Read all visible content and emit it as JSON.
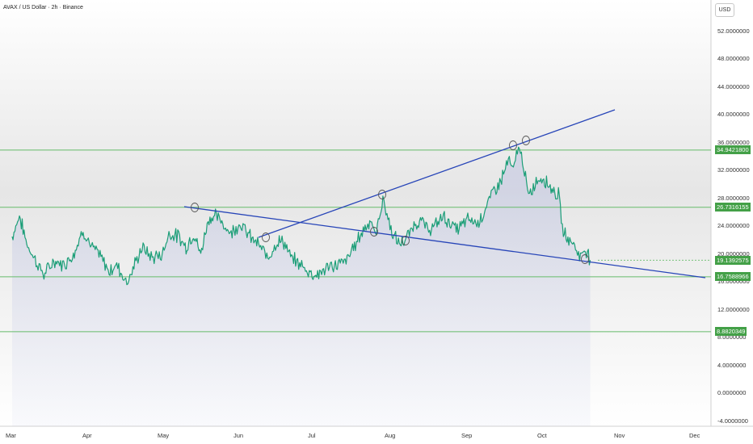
{
  "header": {
    "symbol": "AVAX / US Dollar · 2h · Binance",
    "currency_button": "USD"
  },
  "price_axis": {
    "ticks": [
      "52.0000000",
      "48.0000000",
      "44.0000000",
      "40.0000000",
      "36.0000000",
      "32.0000000",
      "28.0000000",
      "24.0000000",
      "20.0000000",
      "16.0000000",
      "12.0000000",
      "8.0000000",
      "4.0000000",
      "0.0000000",
      "-4.0000000"
    ]
  },
  "time_axis": {
    "ticks": [
      "Mar",
      "Apr",
      "May",
      "Jun",
      "Jul",
      "Aug",
      "Sep",
      "Oct",
      "Nov",
      "Dec"
    ]
  },
  "levels": [
    {
      "value": 34.94218,
      "label": "34.9421800"
    },
    {
      "value": 26.7316155,
      "label": "26.7316155"
    },
    {
      "value": 16.7588966,
      "label": "16.7588966"
    },
    {
      "value": 8.8820349,
      "label": "8.8820349"
    }
  ],
  "last_price": {
    "value": 19.1392575,
    "label": "19.1392575"
  },
  "colors": {
    "line": "#1b9e77",
    "level": "#66bb6a",
    "level_label": "#43a047",
    "trend": "#2745b8"
  },
  "chart_data": {
    "type": "area",
    "title": "AVAX / US Dollar · 2h · Binance",
    "ylim": [
      -4,
      52
    ],
    "x_labels": [
      "Mar",
      "Apr",
      "May",
      "Jun",
      "Jul",
      "Aug",
      "Sep",
      "Oct",
      "Nov",
      "Dec"
    ],
    "series": [
      {
        "name": "AVAX / US Dollar",
        "points": [
          [
            "Mar 1",
            22.5
          ],
          [
            "Mar 4",
            25.5
          ],
          [
            "Mar 7",
            21.5
          ],
          [
            "Mar 10",
            19.5
          ],
          [
            "Mar 14",
            17.0
          ],
          [
            "Mar 18",
            19.0
          ],
          [
            "Mar 22",
            18.5
          ],
          [
            "Mar 26",
            20.0
          ],
          [
            "Mar 30",
            23.5
          ],
          [
            "Apr 2",
            21.0
          ],
          [
            "Apr 5",
            20.0
          ],
          [
            "Apr 9",
            17.5
          ],
          [
            "Apr 12",
            18.5
          ],
          [
            "Apr 16",
            16.0
          ],
          [
            "Apr 18",
            17.5
          ],
          [
            "Apr 22",
            21.0
          ],
          [
            "Apr 26",
            19.5
          ],
          [
            "Apr 30",
            20.0
          ],
          [
            "May 3",
            23.0
          ],
          [
            "May 7",
            22.5
          ],
          [
            "May 10",
            21.0
          ],
          [
            "May 13",
            23.0
          ],
          [
            "May 16",
            20.0
          ],
          [
            "May 19",
            25.0
          ],
          [
            "May 22",
            25.5
          ],
          [
            "May 25",
            24.5
          ],
          [
            "May 28",
            23.0
          ],
          [
            "Jun 1",
            24.5
          ],
          [
            "Jun 5",
            22.5
          ],
          [
            "Jun 8",
            21.5
          ],
          [
            "Jun 12",
            19.5
          ],
          [
            "Jun 15",
            21.5
          ],
          [
            "Jun 18",
            22.0
          ],
          [
            "Jun 21",
            19.5
          ],
          [
            "Jun 25",
            18.5
          ],
          [
            "Jun 28",
            17.5
          ],
          [
            "Jul 2",
            17.0
          ],
          [
            "Jul 6",
            18.0
          ],
          [
            "Jul 10",
            18.5
          ],
          [
            "Jul 14",
            19.0
          ],
          [
            "Jul 17",
            21.0
          ],
          [
            "Jul 21",
            23.5
          ],
          [
            "Jul 24",
            25.0
          ],
          [
            "Jul 26",
            22.5
          ],
          [
            "Jul 29",
            28.0
          ],
          [
            "Aug 1",
            23.5
          ],
          [
            "Aug 4",
            21.5
          ],
          [
            "Aug 7",
            22.0
          ],
          [
            "Aug 10",
            24.0
          ],
          [
            "Aug 13",
            25.0
          ],
          [
            "Aug 16",
            23.5
          ],
          [
            "Aug 19",
            24.0
          ],
          [
            "Aug 22",
            25.5
          ],
          [
            "Aug 25",
            24.5
          ],
          [
            "Aug 28",
            23.5
          ],
          [
            "Sep 1",
            25.0
          ],
          [
            "Sep 5",
            24.5
          ],
          [
            "Sep 8",
            26.5
          ],
          [
            "Sep 11",
            29.0
          ],
          [
            "Sep 14",
            30.5
          ],
          [
            "Sep 17",
            33.5
          ],
          [
            "Sep 19",
            32.0
          ],
          [
            "Sep 21",
            35.5
          ],
          [
            "Sep 23",
            33.0
          ],
          [
            "Sep 25",
            28.0
          ],
          [
            "Sep 28",
            30.5
          ],
          [
            "Oct 1",
            31.0
          ],
          [
            "Oct 4",
            29.5
          ],
          [
            "Oct 7",
            28.5
          ],
          [
            "Oct 9",
            23.0
          ],
          [
            "Oct 12",
            22.0
          ],
          [
            "Oct 14",
            21.0
          ],
          [
            "Oct 16",
            19.5
          ],
          [
            "Oct 18",
            21.0
          ],
          [
            "Oct 20",
            19.1392575
          ]
        ]
      }
    ]
  }
}
